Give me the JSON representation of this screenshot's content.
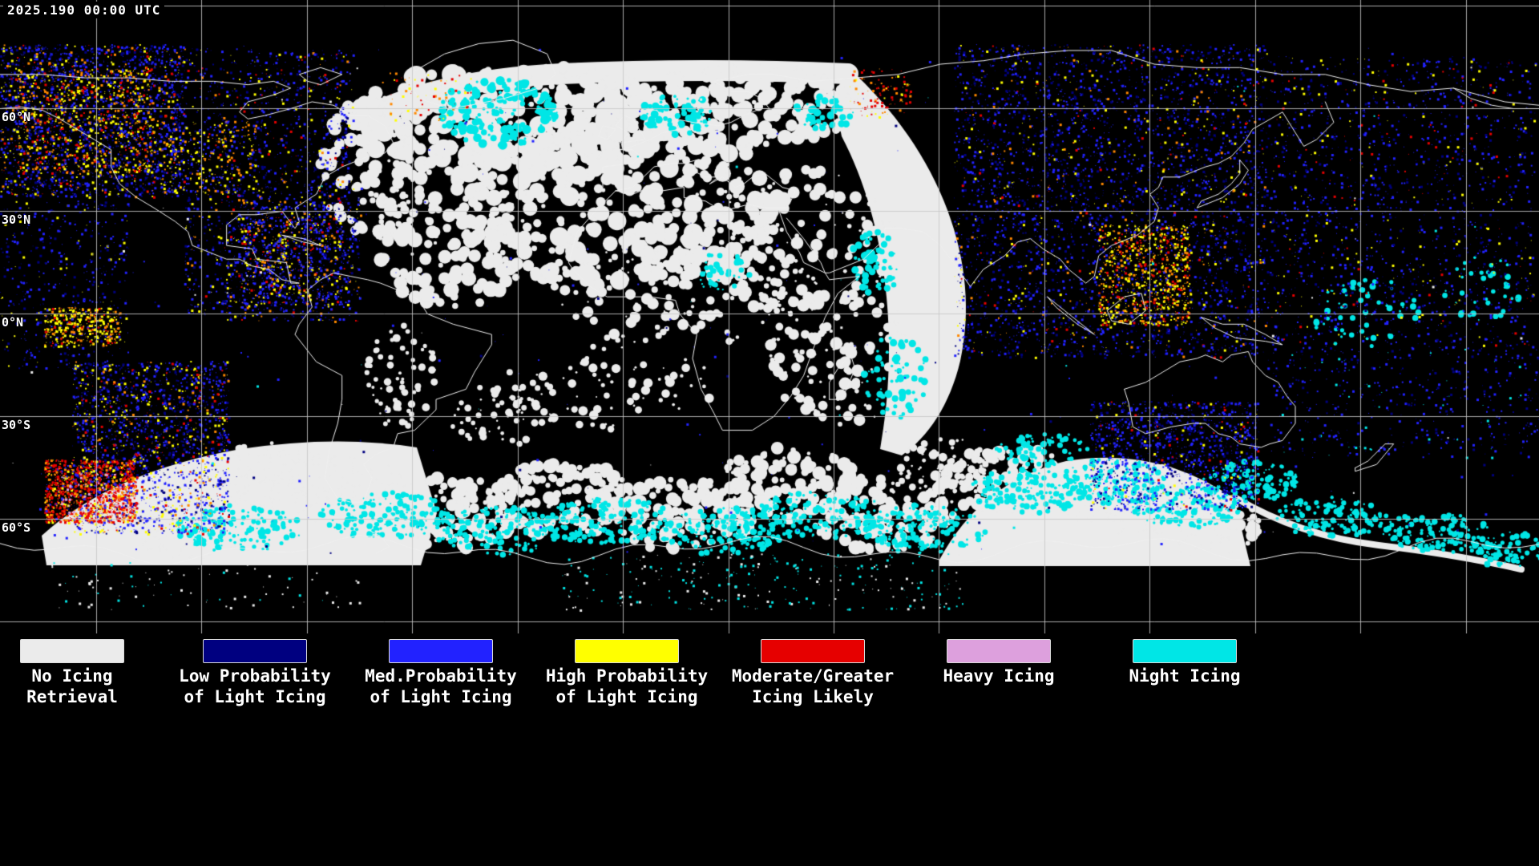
{
  "header": {
    "timestamp": "2025.190 00:00 UTC"
  },
  "map": {
    "latitude_labels": [
      "60°N",
      "30°N",
      "0°N",
      "30°S",
      "60°S"
    ],
    "background_color": "#000000",
    "grid_color": "#c8c8c8",
    "coastline_color": "#f0f0f0"
  },
  "legend": {
    "items": [
      {
        "key": "no_icing",
        "color": "#ebebeb",
        "line1": "No Icing",
        "line2": "Retrieval"
      },
      {
        "key": "low",
        "color": "#000080",
        "line1": "Low Probability",
        "line2": "of Light Icing"
      },
      {
        "key": "med",
        "color": "#2222ff",
        "line1": "Med.Probability",
        "line2": "of Light Icing"
      },
      {
        "key": "high",
        "color": "#ffff00",
        "line1": "High Probability",
        "line2": "of Light Icing"
      },
      {
        "key": "moderate",
        "color": "#e60000",
        "line1": "Moderate/Greater",
        "line2": "Icing Likely"
      },
      {
        "key": "heavy",
        "color": "#dda0dd",
        "line1": "Heavy Icing",
        "line2": ""
      },
      {
        "key": "night",
        "color": "#00e6e6",
        "line1": "Night Icing",
        "line2": ""
      }
    ]
  }
}
